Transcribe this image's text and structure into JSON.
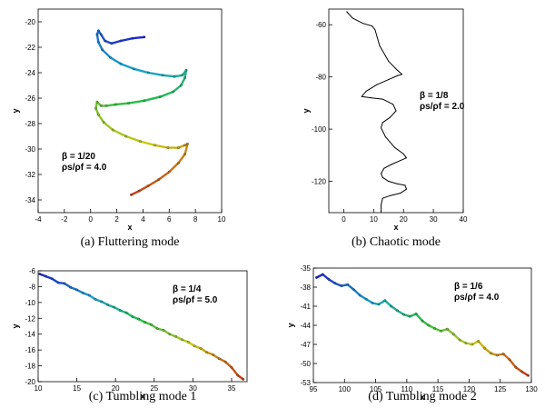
{
  "chart_data": [
    {
      "id": "a",
      "type": "line",
      "caption": "(a) Fluttering mode",
      "xlabel": "x",
      "ylabel": "y",
      "xlim": [
        -4,
        10
      ],
      "ylim": [
        -35,
        -19
      ],
      "xticks": [
        "-4",
        "-2",
        "0",
        "2",
        "4",
        "6",
        "8",
        "10"
      ],
      "yticks": [
        "-20",
        "-22",
        "-24",
        "-26",
        "-28",
        "-30",
        "-32",
        "-34"
      ],
      "annotation": [
        "β = 1/20",
        "ρs/ρf = 4.0"
      ],
      "colored_by_time": true,
      "series": [
        {
          "x": [
            4.1,
            3.2,
            2.3,
            1.6,
            1.1,
            0.8,
            0.6,
            0.5,
            0.6,
            0.9,
            1.5,
            2.3,
            3.3,
            4.4,
            5.5,
            6.4,
            7.0,
            7.3,
            7.2,
            6.9,
            6.3,
            5.3,
            4.1,
            2.9,
            1.9,
            1.2,
            0.8,
            0.5,
            0.4,
            0.6,
            1.0,
            1.7,
            2.7,
            3.8,
            4.9,
            5.9,
            6.7,
            7.2,
            7.4,
            7.2,
            6.7,
            6.0,
            5.2,
            4.4,
            3.7,
            3.1
          ],
          "y": [
            -21.2,
            -21.3,
            -21.5,
            -21.7,
            -21.5,
            -21.0,
            -20.7,
            -21.0,
            -21.6,
            -22.2,
            -22.8,
            -23.3,
            -23.7,
            -24.0,
            -24.2,
            -24.3,
            -24.2,
            -23.8,
            -24.4,
            -25.0,
            -25.5,
            -25.9,
            -26.2,
            -26.4,
            -26.5,
            -26.6,
            -26.6,
            -26.3,
            -26.8,
            -27.3,
            -27.9,
            -28.5,
            -29.0,
            -29.4,
            -29.7,
            -29.9,
            -29.9,
            -29.7,
            -29.6,
            -30.4,
            -31.1,
            -31.8,
            -32.4,
            -32.9,
            -33.3,
            -33.6
          ]
        }
      ]
    },
    {
      "id": "b",
      "type": "line",
      "caption": "(b) Chaotic mode",
      "xlabel": "x",
      "ylabel": "y",
      "xlim": [
        -5,
        40
      ],
      "ylim": [
        -132,
        -54
      ],
      "xticks": [
        "0",
        "10",
        "20",
        "30",
        "40"
      ],
      "yticks": [
        "-60",
        "-80",
        "-100",
        "-120"
      ],
      "annotation": [
        "β = 1/8",
        "ρs/ρf = 2.0"
      ],
      "colored_by_time": false,
      "series": [
        {
          "x": [
            1.0,
            3.0,
            6.5,
            9.5,
            10.5,
            12.0,
            15.0,
            18.0,
            19.5,
            18.0,
            15.0,
            11.0,
            7.5,
            6.0,
            9.0,
            13.0,
            16.5,
            17.5,
            15.5,
            13.0,
            12.5,
            14.0,
            17.0,
            20.0,
            21.0,
            19.0,
            16.0,
            13.5,
            12.5,
            13.0,
            15.0,
            18.0,
            20.5,
            21.0,
            19.0,
            15.5,
            13.0,
            12.5,
            12.5
          ],
          "y": [
            -55.0,
            -57.5,
            -59.5,
            -60.5,
            -62.0,
            -68.0,
            -74.0,
            -77.5,
            -79.0,
            -79.5,
            -81.0,
            -83.0,
            -85.5,
            -87.5,
            -88.0,
            -88.5,
            -90.5,
            -93.0,
            -95.5,
            -97.5,
            -99.5,
            -103.0,
            -107.0,
            -109.5,
            -111.0,
            -112.0,
            -113.5,
            -115.0,
            -117.0,
            -118.5,
            -120.0,
            -121.0,
            -121.5,
            -123.0,
            -124.5,
            -125.5,
            -126.5,
            -129.0,
            -132.0
          ]
        }
      ]
    },
    {
      "id": "c",
      "type": "line",
      "caption": "(c) Tumbling mode 1",
      "xlabel": "x",
      "ylabel": "y",
      "xlim": [
        10,
        37
      ],
      "ylim": [
        -20,
        -6
      ],
      "xticks": [
        "10",
        "15",
        "20",
        "25",
        "30",
        "35"
      ],
      "yticks": [
        "-6",
        "-8",
        "-10",
        "-12",
        "-14",
        "-16",
        "-18",
        "-20"
      ],
      "annotation": [
        "β = 1/4",
        "ρs/ρf = 5.0"
      ],
      "colored_by_time": true,
      "series": [
        {
          "x": [
            10.2,
            11.0,
            11.8,
            12.6,
            13.4,
            14.2,
            15.0,
            15.8,
            16.6,
            17.4,
            18.2,
            19.0,
            19.8,
            20.6,
            21.4,
            22.2,
            23.0,
            23.8,
            24.6,
            25.4,
            26.2,
            27.0,
            27.8,
            28.6,
            29.4,
            30.2,
            31.0,
            31.8,
            32.6,
            33.4,
            34.2,
            35.0,
            35.8,
            36.5
          ],
          "y": [
            -6.4,
            -6.7,
            -7.0,
            -7.5,
            -7.6,
            -8.1,
            -8.4,
            -8.8,
            -9.1,
            -9.6,
            -9.9,
            -10.3,
            -10.6,
            -11.0,
            -11.3,
            -11.8,
            -12.1,
            -12.5,
            -12.8,
            -13.3,
            -13.5,
            -14.0,
            -14.3,
            -14.7,
            -15.0,
            -15.5,
            -15.8,
            -16.3,
            -16.6,
            -17.1,
            -17.5,
            -18.2,
            -19.2,
            -19.7
          ]
        }
      ]
    },
    {
      "id": "d",
      "type": "line",
      "caption": "(d) Tumbling mode 2",
      "xlabel": "x",
      "ylabel": "y",
      "xlim": [
        95,
        130
      ],
      "ylim": [
        -53,
        -35
      ],
      "xticks": [
        "95",
        "100",
        "105",
        "110",
        "115",
        "120",
        "125",
        "130"
      ],
      "yticks": [
        "-35",
        "-38",
        "-41",
        "-44",
        "-47",
        "-50",
        "-53"
      ],
      "annotation": [
        "β = 1/6",
        "ρs/ρf = 4.0"
      ],
      "colored_by_time": true,
      "series": [
        {
          "x": [
            95.5,
            96.5,
            97.5,
            98.5,
            99.5,
            100.5,
            101.5,
            102.5,
            103.5,
            104.5,
            105.5,
            106.5,
            107.5,
            108.5,
            109.5,
            110.5,
            111.5,
            112.5,
            113.5,
            114.5,
            115.5,
            116.5,
            117.5,
            118.5,
            119.5,
            120.5,
            121.5,
            122.5,
            123.5,
            124.5,
            125.5,
            126.5,
            127.5,
            128.5,
            129.5
          ],
          "y": [
            -36.5,
            -36.0,
            -36.8,
            -37.4,
            -37.8,
            -37.6,
            -38.4,
            -39.3,
            -39.9,
            -40.5,
            -40.7,
            -40.1,
            -41.0,
            -41.7,
            -42.3,
            -42.6,
            -42.2,
            -43.3,
            -44.0,
            -44.5,
            -44.9,
            -44.6,
            -45.4,
            -46.3,
            -46.8,
            -47.0,
            -46.5,
            -47.6,
            -48.4,
            -48.7,
            -48.5,
            -49.4,
            -50.6,
            -51.3,
            -51.9
          ]
        }
      ]
    }
  ]
}
